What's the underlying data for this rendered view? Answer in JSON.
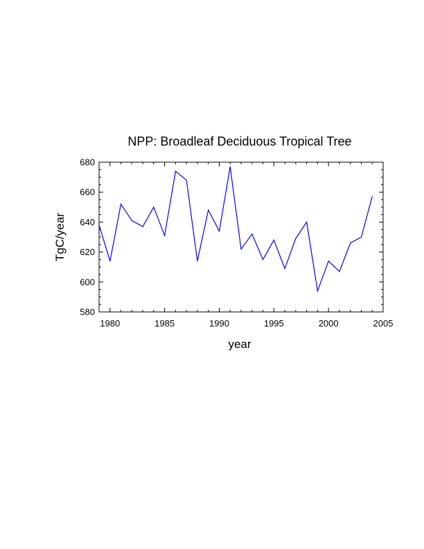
{
  "chart_data": {
    "type": "line",
    "title": "NPP: Broadleaf Deciduous Tropical Tree",
    "xlabel": "year",
    "ylabel": "TgC/year",
    "xlim": [
      1979,
      2005
    ],
    "ylim": [
      580,
      680
    ],
    "x_ticks": [
      1980,
      1985,
      1990,
      1995,
      2000,
      2005
    ],
    "y_ticks": [
      580,
      600,
      620,
      640,
      660,
      680
    ],
    "grid": false,
    "line_color": "#0000ff",
    "series": [
      {
        "x": [
          1979,
          1980,
          1981,
          1982,
          1983,
          1984,
          1985,
          1986,
          1987,
          1988,
          1989,
          1990,
          1991,
          1992,
          1993,
          1994,
          1995,
          1996,
          1997,
          1998,
          1999,
          2000,
          2001,
          2002,
          2003,
          2004
        ],
        "values": [
          638,
          614,
          652,
          641,
          637,
          650,
          631,
          674,
          668,
          614,
          648,
          634,
          677,
          622,
          632,
          615,
          628,
          609,
          629,
          640,
          594,
          614,
          607,
          626,
          630,
          657
        ]
      }
    ]
  }
}
